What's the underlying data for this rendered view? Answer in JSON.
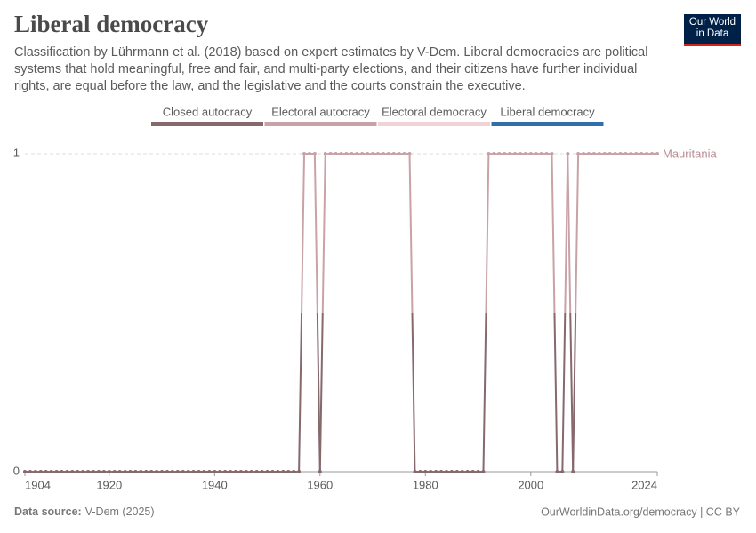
{
  "chart_data": {
    "type": "line",
    "title": "Liberal democracy",
    "subtitle": "Classification by Lührmann et al. (2018) based on expert estimates by V-Dem. Liberal democracies are political systems that hold meaningful, free and fair, and multi-party elections, and their citizens have further individual rights, are equal before the law, and the legislative and the courts constrain the executive.",
    "logo": [
      "Our World",
      "in Data"
    ],
    "legend": [
      {
        "name": "Closed autocracy",
        "color": "#86686d"
      },
      {
        "name": "Electoral autocracy",
        "color": "#c8a2a7"
      },
      {
        "name": "Electoral democracy",
        "color": "#f1d3d6"
      },
      {
        "name": "Liberal democracy",
        "color": "#2f6fae"
      }
    ],
    "x": [
      1904,
      1905,
      1906,
      1907,
      1908,
      1909,
      1910,
      1911,
      1912,
      1913,
      1914,
      1915,
      1916,
      1917,
      1918,
      1919,
      1920,
      1921,
      1922,
      1923,
      1924,
      1925,
      1926,
      1927,
      1928,
      1929,
      1930,
      1931,
      1932,
      1933,
      1934,
      1935,
      1936,
      1937,
      1938,
      1939,
      1940,
      1941,
      1942,
      1943,
      1944,
      1945,
      1946,
      1947,
      1948,
      1949,
      1950,
      1951,
      1952,
      1953,
      1954,
      1955,
      1956,
      1957,
      1958,
      1959,
      1960,
      1961,
      1962,
      1963,
      1964,
      1965,
      1966,
      1967,
      1968,
      1969,
      1970,
      1971,
      1972,
      1973,
      1974,
      1975,
      1976,
      1977,
      1978,
      1979,
      1980,
      1981,
      1982,
      1983,
      1984,
      1985,
      1986,
      1987,
      1988,
      1989,
      1990,
      1991,
      1992,
      1993,
      1994,
      1995,
      1996,
      1997,
      1998,
      1999,
      2000,
      2001,
      2002,
      2003,
      2004,
      2005,
      2006,
      2007,
      2008,
      2009,
      2010,
      2011,
      2012,
      2013,
      2014,
      2015,
      2016,
      2017,
      2018,
      2019,
      2020,
      2021,
      2022,
      2023,
      2024
    ],
    "series": [
      {
        "name": "Mauritania",
        "color": "#b88d94",
        "values": [
          0,
          0,
          0,
          0,
          0,
          0,
          0,
          0,
          0,
          0,
          0,
          0,
          0,
          0,
          0,
          0,
          0,
          0,
          0,
          0,
          0,
          0,
          0,
          0,
          0,
          0,
          0,
          0,
          0,
          0,
          0,
          0,
          0,
          0,
          0,
          0,
          0,
          0,
          0,
          0,
          0,
          0,
          0,
          0,
          0,
          0,
          0,
          0,
          0,
          0,
          0,
          0,
          0,
          1,
          1,
          1,
          0,
          1,
          1,
          1,
          1,
          1,
          1,
          1,
          1,
          1,
          1,
          1,
          1,
          1,
          1,
          1,
          1,
          1,
          0,
          0,
          0,
          0,
          0,
          0,
          0,
          0,
          0,
          0,
          0,
          0,
          0,
          0,
          1,
          1,
          1,
          1,
          1,
          1,
          1,
          1,
          1,
          1,
          1,
          1,
          1,
          0,
          0,
          1,
          0,
          1,
          1,
          1,
          1,
          1,
          1,
          1,
          1,
          1,
          1,
          1,
          1,
          1,
          1,
          1,
          1
        ]
      }
    ],
    "xlim": [
      1904,
      2024
    ],
    "xticks": [
      1904,
      1920,
      1940,
      1960,
      1980,
      2000,
      2024
    ],
    "ylim": [
      0,
      1
    ],
    "yticks": [
      0,
      1
    ],
    "grid": true,
    "source_label": "Data source:",
    "source": "V-Dem (2025)",
    "credit": "OurWorldinData.org/democracy | CC BY"
  }
}
